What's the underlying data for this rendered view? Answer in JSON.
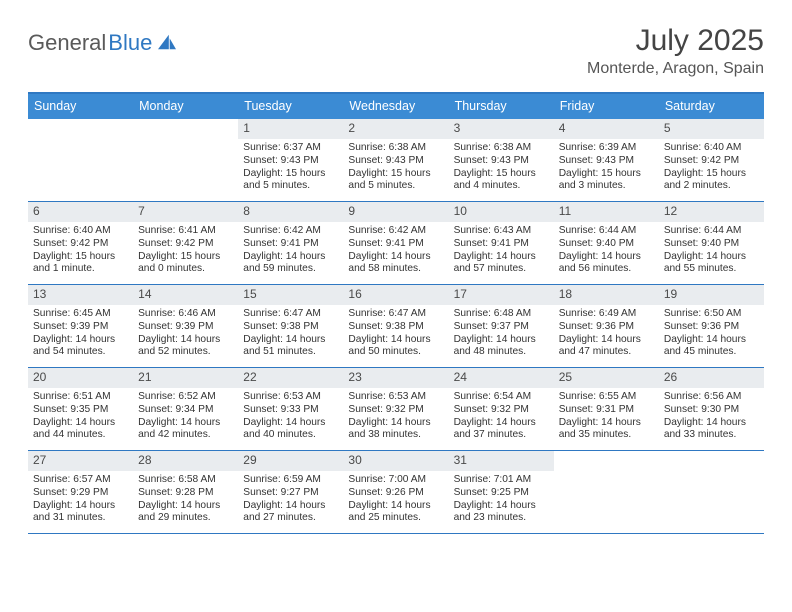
{
  "brand": {
    "word1": "General",
    "word2": "Blue"
  },
  "title": "July 2025",
  "subtitle": "Monterde, Aragon, Spain",
  "colors": {
    "header_bar": "#3b8bd4",
    "accent_line": "#2f78c2",
    "daynum_bg": "#e9ecef",
    "text": "#333333",
    "brand_gray": "#5a5a5a",
    "brand_blue": "#2f78c2"
  },
  "day_headers": [
    "Sunday",
    "Monday",
    "Tuesday",
    "Wednesday",
    "Thursday",
    "Friday",
    "Saturday"
  ],
  "layout": {
    "columns": 7,
    "rows": 5,
    "first_day_column_index": 2
  },
  "days": [
    {
      "n": "1",
      "sunrise": "6:37 AM",
      "sunset": "9:43 PM",
      "daylight": "15 hours and 5 minutes."
    },
    {
      "n": "2",
      "sunrise": "6:38 AM",
      "sunset": "9:43 PM",
      "daylight": "15 hours and 5 minutes."
    },
    {
      "n": "3",
      "sunrise": "6:38 AM",
      "sunset": "9:43 PM",
      "daylight": "15 hours and 4 minutes."
    },
    {
      "n": "4",
      "sunrise": "6:39 AM",
      "sunset": "9:43 PM",
      "daylight": "15 hours and 3 minutes."
    },
    {
      "n": "5",
      "sunrise": "6:40 AM",
      "sunset": "9:42 PM",
      "daylight": "15 hours and 2 minutes."
    },
    {
      "n": "6",
      "sunrise": "6:40 AM",
      "sunset": "9:42 PM",
      "daylight": "15 hours and 1 minute."
    },
    {
      "n": "7",
      "sunrise": "6:41 AM",
      "sunset": "9:42 PM",
      "daylight": "15 hours and 0 minutes."
    },
    {
      "n": "8",
      "sunrise": "6:42 AM",
      "sunset": "9:41 PM",
      "daylight": "14 hours and 59 minutes."
    },
    {
      "n": "9",
      "sunrise": "6:42 AM",
      "sunset": "9:41 PM",
      "daylight": "14 hours and 58 minutes."
    },
    {
      "n": "10",
      "sunrise": "6:43 AM",
      "sunset": "9:41 PM",
      "daylight": "14 hours and 57 minutes."
    },
    {
      "n": "11",
      "sunrise": "6:44 AM",
      "sunset": "9:40 PM",
      "daylight": "14 hours and 56 minutes."
    },
    {
      "n": "12",
      "sunrise": "6:44 AM",
      "sunset": "9:40 PM",
      "daylight": "14 hours and 55 minutes."
    },
    {
      "n": "13",
      "sunrise": "6:45 AM",
      "sunset": "9:39 PM",
      "daylight": "14 hours and 54 minutes."
    },
    {
      "n": "14",
      "sunrise": "6:46 AM",
      "sunset": "9:39 PM",
      "daylight": "14 hours and 52 minutes."
    },
    {
      "n": "15",
      "sunrise": "6:47 AM",
      "sunset": "9:38 PM",
      "daylight": "14 hours and 51 minutes."
    },
    {
      "n": "16",
      "sunrise": "6:47 AM",
      "sunset": "9:38 PM",
      "daylight": "14 hours and 50 minutes."
    },
    {
      "n": "17",
      "sunrise": "6:48 AM",
      "sunset": "9:37 PM",
      "daylight": "14 hours and 48 minutes."
    },
    {
      "n": "18",
      "sunrise": "6:49 AM",
      "sunset": "9:36 PM",
      "daylight": "14 hours and 47 minutes."
    },
    {
      "n": "19",
      "sunrise": "6:50 AM",
      "sunset": "9:36 PM",
      "daylight": "14 hours and 45 minutes."
    },
    {
      "n": "20",
      "sunrise": "6:51 AM",
      "sunset": "9:35 PM",
      "daylight": "14 hours and 44 minutes."
    },
    {
      "n": "21",
      "sunrise": "6:52 AM",
      "sunset": "9:34 PM",
      "daylight": "14 hours and 42 minutes."
    },
    {
      "n": "22",
      "sunrise": "6:53 AM",
      "sunset": "9:33 PM",
      "daylight": "14 hours and 40 minutes."
    },
    {
      "n": "23",
      "sunrise": "6:53 AM",
      "sunset": "9:32 PM",
      "daylight": "14 hours and 38 minutes."
    },
    {
      "n": "24",
      "sunrise": "6:54 AM",
      "sunset": "9:32 PM",
      "daylight": "14 hours and 37 minutes."
    },
    {
      "n": "25",
      "sunrise": "6:55 AM",
      "sunset": "9:31 PM",
      "daylight": "14 hours and 35 minutes."
    },
    {
      "n": "26",
      "sunrise": "6:56 AM",
      "sunset": "9:30 PM",
      "daylight": "14 hours and 33 minutes."
    },
    {
      "n": "27",
      "sunrise": "6:57 AM",
      "sunset": "9:29 PM",
      "daylight": "14 hours and 31 minutes."
    },
    {
      "n": "28",
      "sunrise": "6:58 AM",
      "sunset": "9:28 PM",
      "daylight": "14 hours and 29 minutes."
    },
    {
      "n": "29",
      "sunrise": "6:59 AM",
      "sunset": "9:27 PM",
      "daylight": "14 hours and 27 minutes."
    },
    {
      "n": "30",
      "sunrise": "7:00 AM",
      "sunset": "9:26 PM",
      "daylight": "14 hours and 25 minutes."
    },
    {
      "n": "31",
      "sunrise": "7:01 AM",
      "sunset": "9:25 PM",
      "daylight": "14 hours and 23 minutes."
    }
  ],
  "labels": {
    "sunrise": "Sunrise:",
    "sunset": "Sunset:",
    "daylight": "Daylight:"
  }
}
